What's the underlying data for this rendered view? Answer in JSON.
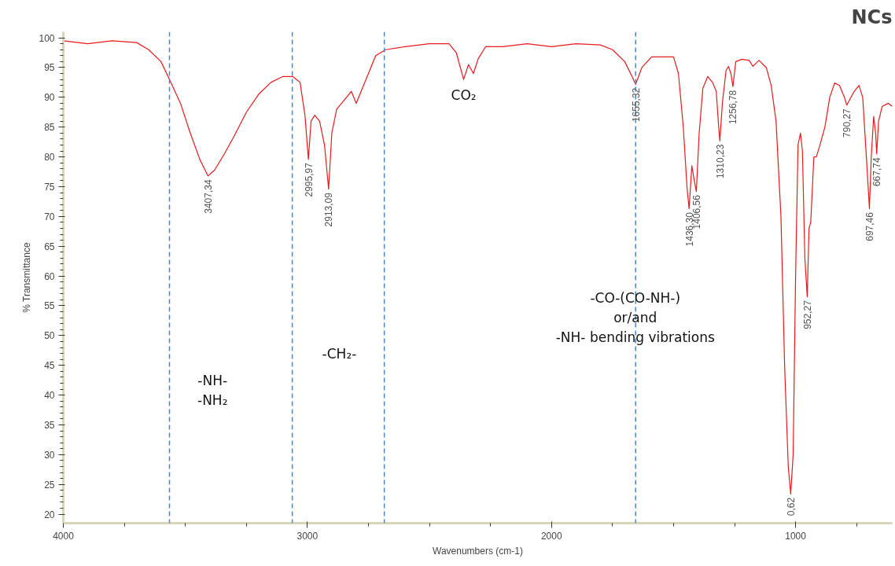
{
  "chart_data": {
    "type": "line",
    "title": "NCs",
    "xlabel": "Wavenumbers (cm-1)",
    "ylabel": "% Transmittance",
    "xlim": [
      4000,
      604
    ],
    "ylim": [
      18.5,
      101
    ],
    "xticks": [
      4000,
      3000,
      2000,
      1000
    ],
    "yticks": [
      20,
      25,
      30,
      35,
      40,
      45,
      50,
      55,
      60,
      65,
      70,
      75,
      80,
      85,
      90,
      95,
      100
    ],
    "grid": false,
    "marker": "none",
    "line_style": "solid",
    "series": [
      {
        "color": "#e8191c",
        "x": [
          4000,
          3900,
          3800,
          3700,
          3650,
          3600,
          3565,
          3520,
          3480,
          3440,
          3407.34,
          3380,
          3340,
          3300,
          3250,
          3200,
          3150,
          3100,
          3060,
          3030,
          3010,
          2995.97,
          2985,
          2970,
          2950,
          2930,
          2913.09,
          2900,
          2880,
          2850,
          2820,
          2800,
          2780,
          2750,
          2720,
          2680,
          2600,
          2500,
          2420,
          2390,
          2360,
          2340,
          2320,
          2300,
          2270,
          2200,
          2100,
          2000,
          1900,
          1800,
          1750,
          1700,
          1670,
          1655.32,
          1630,
          1590,
          1540,
          1500,
          1480,
          1460,
          1445,
          1436.3,
          1425,
          1415,
          1406.56,
          1395,
          1380,
          1360,
          1340,
          1325,
          1315,
          1310.23,
          1300,
          1285,
          1275,
          1265,
          1256.78,
          1245,
          1220,
          1190,
          1175,
          1150,
          1120,
          1100,
          1080,
          1060,
          1045,
          1030,
          1020,
          1010,
          1000,
          990,
          980,
          972,
          962,
          952.27,
          945,
          938,
          925,
          915,
          900,
          880,
          860,
          840,
          820,
          800,
          790.27,
          760,
          740,
          725,
          710,
          697.46,
          690,
          680,
          672,
          667.74,
          660,
          645,
          620,
          604
        ],
        "values": [
          99.5,
          99,
          99.5,
          99.2,
          98,
          96,
          93,
          89,
          84,
          79.5,
          76.8,
          77.8,
          80.5,
          83.5,
          87.5,
          90.5,
          92.5,
          93.5,
          93.5,
          92.5,
          87,
          79.6,
          86,
          87,
          86,
          82,
          74.6,
          84,
          88,
          89.5,
          91,
          89,
          91,
          94,
          97,
          98,
          98.5,
          99,
          99,
          97.5,
          93,
          95.5,
          94,
          96.5,
          98.5,
          98.5,
          99,
          98.5,
          99,
          98.8,
          98,
          96,
          93.5,
          92.2,
          95,
          96.8,
          96.8,
          96.8,
          94,
          85,
          75,
          71.3,
          78.5,
          76,
          74.2,
          84,
          91.5,
          93.5,
          92.5,
          91,
          85,
          82.7,
          89,
          94.5,
          95.2,
          94,
          91.8,
          96,
          96.4,
          96.2,
          95.2,
          96.2,
          95,
          92,
          86,
          70,
          45,
          28,
          23.4,
          30,
          60,
          82,
          84,
          81,
          63,
          56.5,
          68,
          69,
          80,
          80,
          82,
          85,
          90,
          92.4,
          92,
          90,
          88.7,
          91,
          92,
          90,
          80,
          71.3,
          80,
          86.8,
          84,
          80.5,
          86,
          88.5,
          89,
          88.5
        ]
      }
    ],
    "ref_lines": [
      {
        "axis": "x",
        "value": 3565,
        "label": null,
        "color": "#4a86c8",
        "line_style": "dashed"
      },
      {
        "axis": "x",
        "value": 3062,
        "label": null,
        "color": "#4a86c8",
        "line_style": "dashed"
      },
      {
        "axis": "x",
        "value": 2685,
        "label": null,
        "color": "#4a86c8",
        "line_style": "dashed"
      },
      {
        "axis": "x",
        "value": 1655.32,
        "label": null,
        "color": "#4a86c8",
        "line_style": "dashed"
      }
    ],
    "annotations": [
      {
        "text": "3407,34",
        "x": 3407.34,
        "y": 76.8
      },
      {
        "text": "2995,97",
        "x": 2995.97,
        "y": 79.6
      },
      {
        "text": "2913,09",
        "x": 2913.09,
        "y": 74.6
      },
      {
        "text": "1655,32",
        "x": 1655.32,
        "y": 92.2
      },
      {
        "text": "1436,30",
        "x": 1436.3,
        "y": 71.3
      },
      {
        "text": "1406,56",
        "x": 1406.56,
        "y": 74.2
      },
      {
        "text": "1310,23",
        "x": 1310.23,
        "y": 82.7
      },
      {
        "text": "1256,78",
        "x": 1256.78,
        "y": 91.8
      },
      {
        "text": "0,62",
        "x": 1020,
        "y": 23.4
      },
      {
        "text": "952,27",
        "x": 952.27,
        "y": 56.5
      },
      {
        "text": "790,27",
        "x": 790.27,
        "y": 88.7
      },
      {
        "text": "697,46",
        "x": 697.46,
        "y": 71.3
      },
      {
        "text": "667,74",
        "x": 667.74,
        "y": 80.5
      },
      "-NH-\n-NH₂",
      "-CH₂-",
      "CO₂",
      "-CO-(CO-NH-)\nor/and\n-NH- bending vibrations"
    ]
  }
}
